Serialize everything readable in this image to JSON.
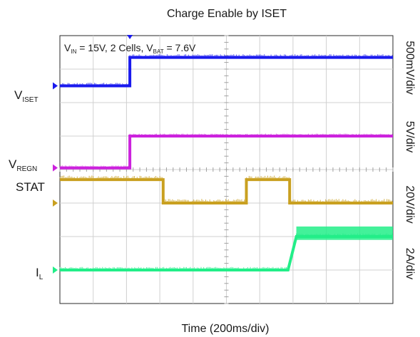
{
  "chart_data": {
    "type": "line",
    "title": "Charge Enable by ISET",
    "xlabel": "Time (200ms/div)",
    "annotation": {
      "parts": [
        {
          "t": "V",
          "sub": false
        },
        {
          "t": "IN",
          "sub": true
        },
        {
          "t": " = 15V, 2 Cells, V",
          "sub": false
        },
        {
          "t": "BAT",
          "sub": true
        },
        {
          "t": " = 7.6V",
          "sub": false
        }
      ]
    },
    "divisions": {
      "x": 10,
      "y": 8
    },
    "grid": true,
    "x_unit": "div",
    "channels": [
      {
        "id": "1",
        "label_main": "V",
        "label_sub": "ISET",
        "scale": "500mV/div",
        "color": "#1a1aee",
        "marker_div": 6.5,
        "points": [
          [
            0,
            6.5
          ],
          [
            2.1,
            6.5
          ],
          [
            2.1,
            7.35
          ],
          [
            10,
            7.35
          ]
        ],
        "noise": 0.05
      },
      {
        "id": "2",
        "label_main": "V",
        "label_sub": "REGN",
        "scale": "5V/div",
        "color": "#cc22dd",
        "marker_div": 4.05,
        "points": [
          [
            0,
            4.05
          ],
          [
            2.1,
            4.05
          ],
          [
            2.1,
            5.0
          ],
          [
            10,
            5.0
          ]
        ],
        "noise": 0.03
      },
      {
        "id": "3",
        "label_main": "STAT",
        "label_sub": "",
        "scale": "20V/div",
        "color": "#c9a020",
        "marker_div": 3.0,
        "points": [
          [
            0,
            3.7
          ],
          [
            3.1,
            3.7
          ],
          [
            3.1,
            3.0
          ],
          [
            5.6,
            3.0
          ],
          [
            5.6,
            3.7
          ],
          [
            6.9,
            3.7
          ],
          [
            6.9,
            3.0
          ],
          [
            10,
            3.0
          ]
        ],
        "noise": 0.08
      },
      {
        "id": "4",
        "label_main": "I",
        "label_sub": "L",
        "scale": "2A/div",
        "color": "#22ee88",
        "marker_div": 1.0,
        "points": [
          [
            0,
            1.0
          ],
          [
            6.85,
            1.0
          ],
          [
            7.1,
            2.0
          ],
          [
            10,
            2.0
          ]
        ],
        "noise": 0.05,
        "band": {
          "from": 7.1,
          "to": 10,
          "low": 1.9,
          "high": 2.3
        }
      }
    ],
    "trigger_marker_x_div": 2.1
  }
}
